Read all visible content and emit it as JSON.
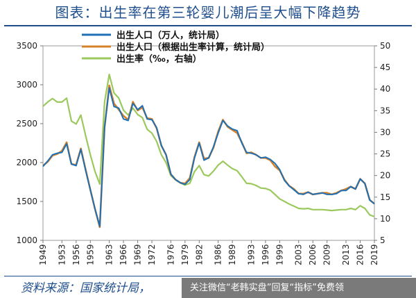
{
  "title": "图表：出生率在第三轮婴儿潮后呈大幅下降趋势",
  "source": "资料来源：国家统计局，",
  "watermark": "关注微信“老韩实盘”回复“指标”免费领",
  "chart_data": {
    "type": "line",
    "x": [
      1949,
      1950,
      1951,
      1952,
      1953,
      1954,
      1955,
      1956,
      1957,
      1958,
      1959,
      1960,
      1961,
      1962,
      1963,
      1964,
      1965,
      1966,
      1967,
      1968,
      1969,
      1970,
      1971,
      1972,
      1973,
      1974,
      1975,
      1976,
      1977,
      1978,
      1979,
      1980,
      1981,
      1982,
      1983,
      1984,
      1985,
      1986,
      1987,
      1988,
      1989,
      1990,
      1991,
      1992,
      1993,
      1994,
      1995,
      1996,
      1997,
      1998,
      1999,
      2000,
      2001,
      2002,
      2003,
      2004,
      2005,
      2006,
      2007,
      2008,
      2009,
      2010,
      2011,
      2012,
      2013,
      2014,
      2015,
      2016,
      2017,
      2018,
      2019
    ],
    "x_ticks": [
      1949,
      1953,
      1956,
      1959,
      1963,
      1966,
      1969,
      1972,
      1976,
      1979,
      1982,
      1986,
      1989,
      1993,
      1996,
      1999,
      2003,
      2006,
      2009,
      2013,
      2016,
      2019
    ],
    "y_left": {
      "min": 1000,
      "max": 3500,
      "ticks": [
        1000,
        1500,
        2000,
        2500,
        3000,
        3500
      ]
    },
    "y_right": {
      "min": 5,
      "max": 50,
      "ticks": [
        5,
        10,
        15,
        20,
        25,
        30,
        35,
        40,
        45,
        50
      ]
    },
    "series": [
      {
        "name": "出生人口（万人，统计局）",
        "axis": "left",
        "color": "#1f6fb4",
        "values": [
          1950,
          2020,
          2100,
          2120,
          2130,
          2240,
          1980,
          1960,
          2170,
          1900,
          1650,
          1400,
          1180,
          2450,
          2960,
          2720,
          2700,
          2560,
          2540,
          2760,
          2680,
          2730,
          2560,
          2550,
          2450,
          2220,
          2100,
          1850,
          1780,
          1740,
          1720,
          1780,
          2060,
          2250,
          2030,
          2060,
          2200,
          2380,
          2540,
          2470,
          2430,
          2410,
          2250,
          2130,
          2120,
          2100,
          2060,
          2070,
          2040,
          1990,
          1910,
          1770,
          1700,
          1650,
          1600,
          1590,
          1620,
          1590,
          1600,
          1610,
          1590,
          1590,
          1600,
          1640,
          1640,
          1690,
          1660,
          1790,
          1730,
          1520,
          1470
        ]
      },
      {
        "name": "出生人口（根据出生率计算，统计局）",
        "axis": "left",
        "color": "#d4822a",
        "values": [
          1960,
          2010,
          2090,
          2110,
          2150,
          2260,
          1980,
          1970,
          2180,
          1910,
          1650,
          1400,
          1170,
          2450,
          2990,
          2760,
          2680,
          2600,
          2550,
          2780,
          2670,
          2710,
          2570,
          2560,
          2440,
          2220,
          2100,
          1850,
          1780,
          1740,
          1730,
          1800,
          2070,
          2260,
          2050,
          2060,
          2190,
          2400,
          2550,
          2460,
          2420,
          2380,
          2260,
          2120,
          2130,
          2100,
          2060,
          2060,
          2030,
          1950,
          1900,
          1780,
          1700,
          1660,
          1600,
          1600,
          1620,
          1590,
          1600,
          1610,
          1610,
          1590,
          1610,
          1640,
          1660,
          1690,
          1660,
          1790,
          1730,
          1520,
          1470
        ]
      },
      {
        "name": "出生率（‰，右轴）",
        "axis": "right",
        "color": "#9bc95d",
        "values": [
          36,
          37,
          37.8,
          37,
          37,
          37.9,
          32.6,
          31.9,
          34,
          29.2,
          24.8,
          20.9,
          18,
          37,
          43.4,
          39.1,
          37.9,
          35.1,
          34,
          35.6,
          34.1,
          33.4,
          30.7,
          29.8,
          27.9,
          24.8,
          23,
          20,
          19,
          18.3,
          17.8,
          18.2,
          20.9,
          22.3,
          20.2,
          19.9,
          21.0,
          22.4,
          23.3,
          22.4,
          21.6,
          21.1,
          19.7,
          18.2,
          18.1,
          17.7,
          17.1,
          17.0,
          16.6,
          15.6,
          14.6,
          14.0,
          13.4,
          12.9,
          12.4,
          12.3,
          12.4,
          12.1,
          12.1,
          12.1,
          12.0,
          11.9,
          12.0,
          12.1,
          12.1,
          12.4,
          12.1,
          13.0,
          12.4,
          10.9,
          10.5
        ]
      }
    ]
  }
}
